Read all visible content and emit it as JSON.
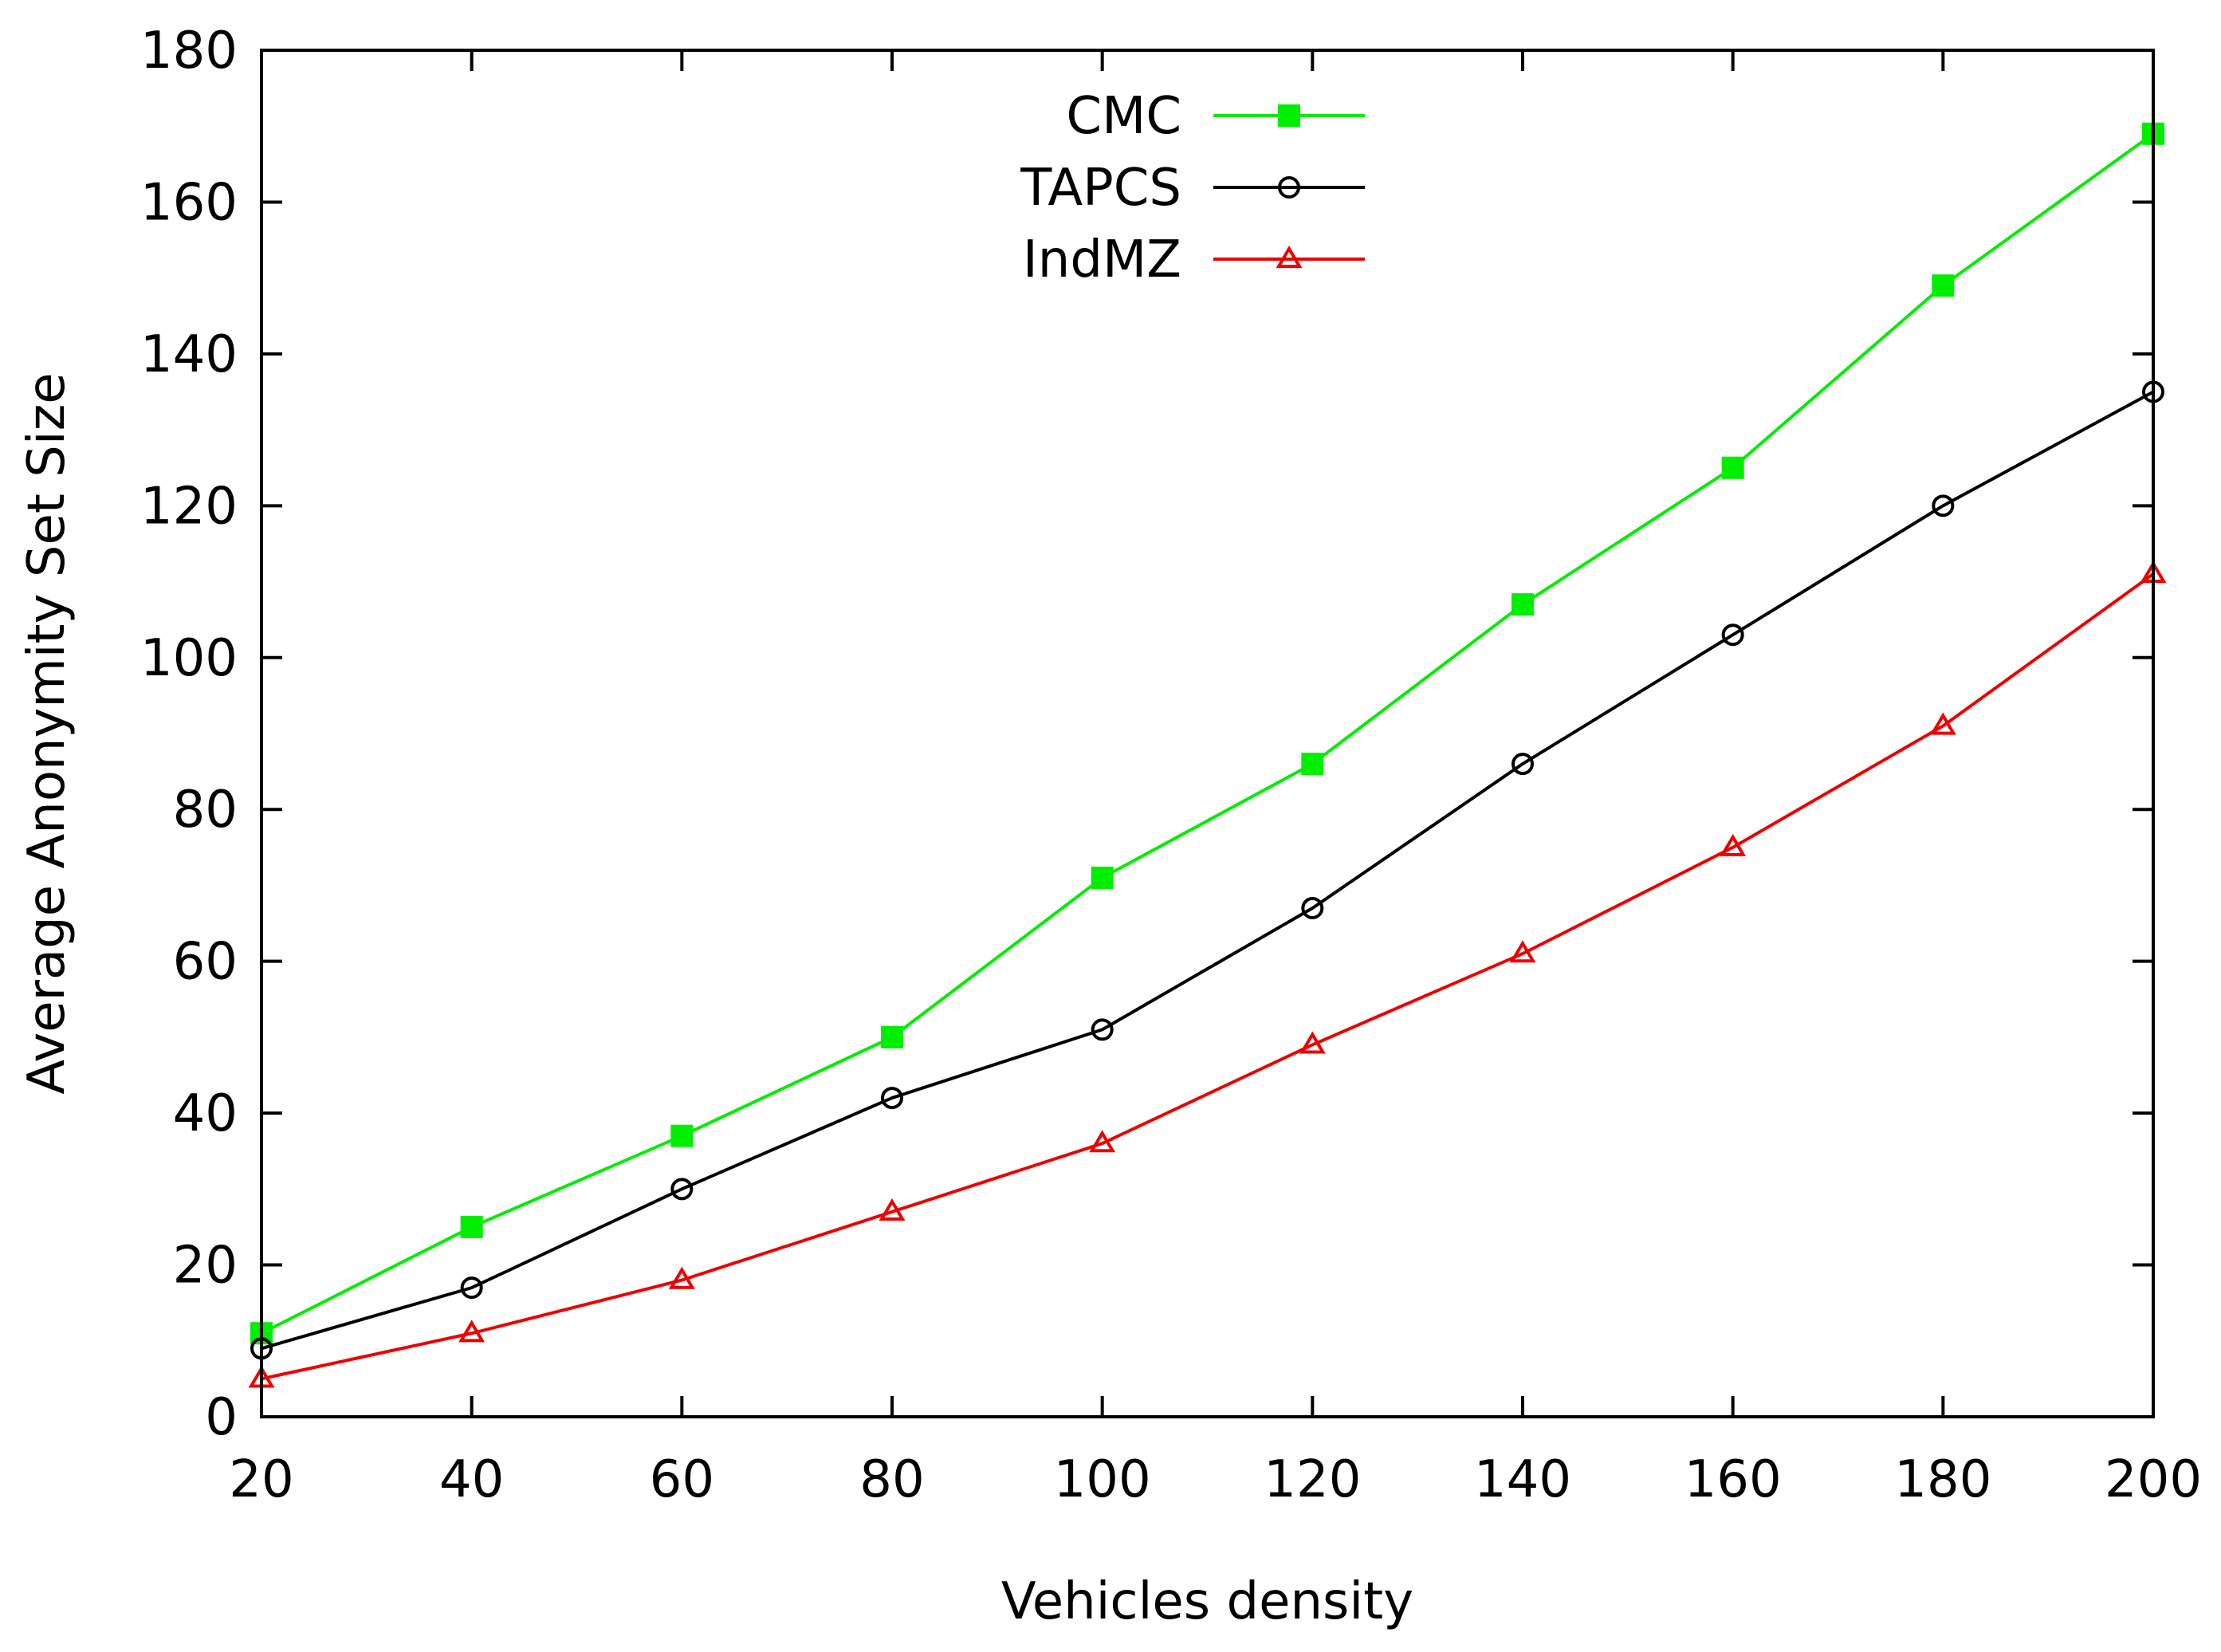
{
  "chart_data": {
    "type": "line",
    "title": "",
    "xlabel": "Vehicles density",
    "ylabel": "Average Anonymity Set Size",
    "x": [
      20,
      40,
      60,
      80,
      100,
      120,
      140,
      160,
      180,
      200
    ],
    "xlim": [
      20,
      200
    ],
    "ylim": [
      0,
      180
    ],
    "xticks": [
      20,
      40,
      60,
      80,
      100,
      120,
      140,
      160,
      180,
      200
    ],
    "yticks": [
      0,
      20,
      40,
      60,
      80,
      100,
      120,
      140,
      160,
      180
    ],
    "grid": false,
    "legend_position": "top-center",
    "series": [
      {
        "name": "CMC",
        "color": "#00ee00",
        "marker": "filled-square",
        "values": [
          11,
          25,
          37,
          50,
          71,
          86,
          107,
          125,
          149,
          169
        ]
      },
      {
        "name": "TAPCS",
        "color": "#000000",
        "marker": "open-circle",
        "values": [
          9,
          17,
          30,
          42,
          51,
          67,
          86,
          103,
          120,
          135
        ]
      },
      {
        "name": "IndMZ",
        "color": "#ee0000",
        "marker": "open-triangle",
        "values": [
          5,
          11,
          18,
          27,
          36,
          49,
          61,
          75,
          91,
          111
        ]
      }
    ]
  }
}
